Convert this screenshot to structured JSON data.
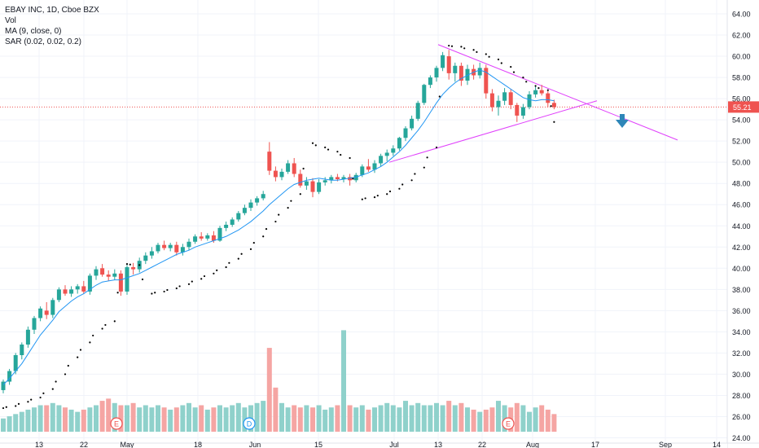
{
  "legend": {
    "title": "EBAY INC, 1D, Cboe BZX",
    "vol": "Vol",
    "ma": "MA (9, close, 0)",
    "sar": "SAR (0.02, 0.02, 0.2)"
  },
  "last_price_label": "55.21",
  "colors": {
    "up": "#26a69a",
    "down": "#ef5350",
    "ma": "#2196f3",
    "trend": "#e040fb",
    "price_line": "#ef5350",
    "arrow": "#2e86b8"
  },
  "x_axis_labels": [
    "13",
    "22",
    "May",
    "18",
    "Jun",
    "15",
    "Jul",
    "13",
    "22",
    "Aug",
    "17",
    "Sep",
    "14"
  ],
  "y_axis_labels": [
    "64.00",
    "62.00",
    "60.00",
    "58.00",
    "56.00",
    "54.00",
    "52.00",
    "50.00",
    "48.00",
    "46.00",
    "44.00",
    "42.00",
    "40.00",
    "38.00",
    "36.00",
    "34.00",
    "32.00",
    "30.00",
    "28.00",
    "26.00",
    "24.00"
  ],
  "event_markers": [
    "E",
    "D",
    "E"
  ],
  "chart_data": {
    "type": "candlestick",
    "y_range": [
      23.5,
      65
    ],
    "ohlc": [
      [
        28.5,
        29.5,
        28.2,
        29.3
      ],
      [
        29.3,
        30.5,
        29.0,
        30.3
      ],
      [
        30.3,
        32.0,
        30.0,
        31.8
      ],
      [
        31.8,
        33.0,
        31.4,
        32.8
      ],
      [
        32.8,
        34.5,
        32.5,
        34.2
      ],
      [
        34.2,
        35.5,
        33.8,
        35.3
      ],
      [
        35.3,
        36.4,
        35.0,
        36.2
      ],
      [
        36.0,
        36.8,
        35.2,
        35.6
      ],
      [
        35.6,
        37.2,
        35.3,
        37.0
      ],
      [
        37.0,
        38.2,
        36.8,
        38.0
      ],
      [
        38.0,
        38.4,
        37.4,
        37.6
      ],
      [
        37.6,
        38.3,
        37.3,
        38.0
      ],
      [
        38.0,
        38.5,
        37.6,
        38.3
      ],
      [
        38.3,
        38.8,
        37.6,
        37.8
      ],
      [
        37.8,
        39.5,
        37.5,
        39.3
      ],
      [
        39.3,
        40.2,
        38.9,
        39.9
      ],
      [
        40.0,
        40.4,
        39.2,
        39.4
      ],
      [
        39.4,
        39.8,
        38.8,
        39.2
      ],
      [
        39.2,
        39.9,
        38.9,
        39.5
      ],
      [
        39.5,
        39.8,
        37.4,
        37.8
      ],
      [
        37.8,
        40.3,
        37.5,
        40.1
      ],
      [
        40.1,
        40.5,
        39.4,
        39.9
      ],
      [
        39.9,
        41.0,
        39.6,
        40.7
      ],
      [
        40.7,
        41.5,
        40.4,
        41.2
      ],
      [
        41.2,
        42.0,
        40.9,
        41.6
      ],
      [
        41.6,
        42.4,
        41.4,
        42.2
      ],
      [
        42.2,
        42.6,
        41.7,
        41.9
      ],
      [
        41.9,
        42.4,
        41.6,
        42.2
      ],
      [
        42.2,
        42.5,
        41.2,
        41.5
      ],
      [
        41.5,
        42.3,
        41.2,
        42.0
      ],
      [
        42.0,
        42.8,
        41.7,
        42.5
      ],
      [
        42.5,
        43.2,
        42.3,
        43.0
      ],
      [
        43.0,
        43.4,
        42.6,
        42.8
      ],
      [
        42.8,
        43.3,
        42.6,
        43.1
      ],
      [
        43.1,
        43.5,
        42.4,
        42.6
      ],
      [
        42.6,
        44.0,
        42.5,
        43.8
      ],
      [
        43.8,
        44.4,
        43.5,
        44.1
      ],
      [
        44.1,
        44.8,
        43.9,
        44.6
      ],
      [
        44.6,
        45.4,
        44.4,
        45.2
      ],
      [
        45.2,
        46.0,
        45.0,
        45.7
      ],
      [
        45.7,
        46.5,
        45.4,
        46.2
      ],
      [
        46.2,
        46.8,
        45.9,
        46.6
      ],
      [
        46.6,
        47.3,
        46.4,
        47.0
      ],
      [
        51.0,
        51.9,
        48.8,
        49.2
      ],
      [
        49.2,
        49.6,
        48.2,
        48.6
      ],
      [
        48.6,
        49.4,
        48.3,
        49.1
      ],
      [
        49.1,
        50.2,
        48.9,
        49.9
      ],
      [
        49.9,
        50.4,
        48.6,
        48.9
      ],
      [
        48.9,
        49.3,
        47.6,
        47.8
      ],
      [
        47.8,
        48.6,
        47.4,
        48.2
      ],
      [
        48.2,
        48.5,
        46.7,
        47.2
      ],
      [
        47.2,
        48.4,
        47.0,
        48.1
      ],
      [
        48.1,
        48.6,
        47.8,
        48.3
      ],
      [
        48.3,
        48.8,
        48.0,
        48.6
      ],
      [
        48.6,
        48.9,
        48.2,
        48.4
      ],
      [
        48.4,
        48.8,
        48.1,
        48.6
      ],
      [
        48.6,
        48.9,
        47.8,
        48.3
      ],
      [
        48.3,
        49.0,
        48.1,
        48.8
      ],
      [
        48.8,
        49.8,
        48.6,
        49.6
      ],
      [
        49.6,
        50.3,
        49.1,
        49.3
      ],
      [
        49.3,
        50.2,
        49.0,
        49.9
      ],
      [
        49.9,
        50.8,
        49.6,
        50.6
      ],
      [
        50.6,
        51.2,
        50.1,
        50.9
      ],
      [
        50.9,
        51.6,
        50.6,
        51.3
      ],
      [
        51.3,
        52.4,
        51.1,
        52.3
      ],
      [
        52.3,
        53.4,
        52.0,
        53.2
      ],
      [
        53.2,
        54.4,
        53.0,
        54.1
      ],
      [
        54.1,
        55.8,
        53.9,
        55.6
      ],
      [
        55.6,
        57.4,
        55.4,
        57.3
      ],
      [
        57.3,
        58.2,
        57.0,
        58.0
      ],
      [
        58.0,
        59.1,
        57.6,
        58.9
      ],
      [
        58.9,
        60.4,
        58.6,
        60.1
      ],
      [
        60.0,
        60.6,
        57.8,
        58.4
      ],
      [
        58.4,
        59.4,
        57.6,
        59.1
      ],
      [
        59.1,
        59.4,
        57.2,
        57.7
      ],
      [
        57.7,
        59.2,
        57.3,
        58.8
      ],
      [
        58.8,
        59.2,
        57.8,
        58.2
      ],
      [
        58.2,
        59.4,
        57.9,
        58.9
      ],
      [
        58.9,
        59.2,
        56.0,
        56.5
      ],
      [
        56.5,
        56.9,
        54.8,
        55.2
      ],
      [
        55.2,
        56.3,
        54.4,
        55.8
      ],
      [
        55.8,
        57.0,
        55.4,
        56.6
      ],
      [
        56.6,
        56.9,
        55.0,
        55.4
      ],
      [
        55.4,
        55.6,
        53.8,
        54.4
      ],
      [
        54.4,
        55.5,
        54.1,
        55.2
      ],
      [
        55.2,
        56.7,
        55.0,
        56.4
      ],
      [
        56.4,
        57.2,
        56.1,
        56.8
      ],
      [
        56.8,
        57.3,
        56.3,
        56.5
      ],
      [
        56.5,
        56.7,
        55.2,
        55.6
      ],
      [
        55.6,
        55.9,
        55.0,
        55.2
      ]
    ],
    "volume": [
      6,
      7,
      8,
      9,
      10,
      11,
      12,
      12,
      13,
      12,
      11,
      10,
      9,
      10,
      11,
      12,
      14,
      15,
      13,
      12,
      12,
      13,
      11,
      12,
      11,
      12,
      11,
      10,
      11,
      12,
      13,
      11,
      12,
      10,
      11,
      12,
      11,
      12,
      13,
      11,
      12,
      13,
      14,
      38,
      20,
      13,
      11,
      12,
      11,
      12,
      11,
      12,
      10,
      11,
      12,
      46,
      12,
      11,
      12,
      10,
      11,
      12,
      13,
      12,
      11,
      14,
      12,
      13,
      12,
      12,
      13,
      12,
      14,
      12,
      13,
      11,
      10,
      9,
      10,
      11,
      14,
      12,
      11,
      13,
      12,
      9,
      11,
      12,
      10,
      8
    ],
    "ma9": [
      29.0,
      29.6,
      30.3,
      31.0,
      31.9,
      32.8,
      33.7,
      34.4,
      35.1,
      35.9,
      36.4,
      36.9,
      37.3,
      37.6,
      38.0,
      38.4,
      38.7,
      38.8,
      38.9,
      38.9,
      39.1,
      39.3,
      39.5,
      39.8,
      40.1,
      40.4,
      40.7,
      41.0,
      41.3,
      41.5,
      41.7,
      42.0,
      42.2,
      42.4,
      42.6,
      42.8,
      43.0,
      43.3,
      43.6,
      44.0,
      44.4,
      44.9,
      45.4,
      46.0,
      46.5,
      47.0,
      47.5,
      47.9,
      48.1,
      48.3,
      48.4,
      48.5,
      48.4,
      48.3,
      48.3,
      48.4,
      48.5,
      48.6,
      48.8,
      49.0,
      49.3,
      49.6,
      50.0,
      50.5,
      51.0,
      51.6,
      52.3,
      53.0,
      53.8,
      54.7,
      55.6,
      56.4,
      57.0,
      57.5,
      57.9,
      58.2,
      58.5,
      58.7,
      58.5,
      58.1,
      57.7,
      57.3,
      56.9,
      56.5,
      56.1,
      55.9,
      55.8,
      55.9,
      55.9,
      55.8
    ],
    "sar": [
      {
        "i": 0,
        "v": 26.8
      },
      {
        "i": 2,
        "v": 27.0
      },
      {
        "i": 4,
        "v": 27.4
      },
      {
        "i": 6,
        "v": 27.8
      },
      {
        "i": 8,
        "v": 28.6
      },
      {
        "i": 10,
        "v": 30.0
      },
      {
        "i": 12,
        "v": 31.6
      },
      {
        "i": 14,
        "v": 33.0
      },
      {
        "i": 16,
        "v": 34.3
      },
      {
        "i": 18,
        "v": 35.0
      },
      {
        "i": 20,
        "v": 40.4
      },
      {
        "i": 22,
        "v": 40.3
      },
      {
        "i": 24,
        "v": 37.6
      },
      {
        "i": 26,
        "v": 37.8
      },
      {
        "i": 28,
        "v": 38.1
      },
      {
        "i": 30,
        "v": 38.5
      },
      {
        "i": 32,
        "v": 39.0
      },
      {
        "i": 34,
        "v": 39.5
      },
      {
        "i": 36,
        "v": 40.1
      },
      {
        "i": 38,
        "v": 40.9
      },
      {
        "i": 40,
        "v": 41.8
      },
      {
        "i": 42,
        "v": 43.0
      },
      {
        "i": 44,
        "v": 44.4
      },
      {
        "i": 46,
        "v": 45.7
      },
      {
        "i": 48,
        "v": 47.0
      },
      {
        "i": 50,
        "v": 51.8
      },
      {
        "i": 52,
        "v": 51.4
      },
      {
        "i": 54,
        "v": 51.0
      },
      {
        "i": 56,
        "v": 50.4
      },
      {
        "i": 58,
        "v": 46.5
      },
      {
        "i": 60,
        "v": 46.7
      },
      {
        "i": 62,
        "v": 47.0
      },
      {
        "i": 64,
        "v": 47.5
      },
      {
        "i": 66,
        "v": 48.3
      },
      {
        "i": 68,
        "v": 49.5
      },
      {
        "i": 70,
        "v": 51.4
      },
      {
        "i": 72,
        "v": 61.0
      },
      {
        "i": 74,
        "v": 60.9
      },
      {
        "i": 76,
        "v": 60.6
      },
      {
        "i": 78,
        "v": 60.2
      },
      {
        "i": 80,
        "v": 59.7
      },
      {
        "i": 82,
        "v": 59.0
      },
      {
        "i": 84,
        "v": 58.0
      },
      {
        "i": 86,
        "v": 57.2
      },
      {
        "i": 88,
        "v": 56.8
      },
      {
        "i": 89,
        "v": 53.8
      }
    ]
  }
}
